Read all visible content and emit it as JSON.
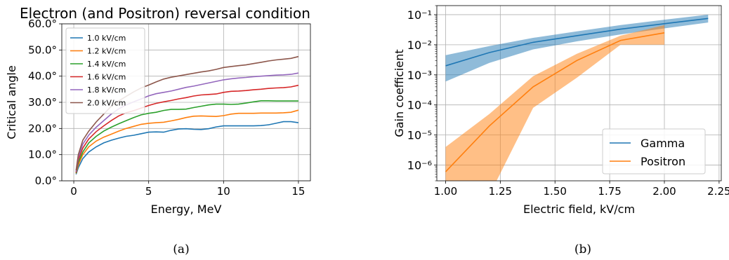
{
  "panel_labels": [
    "(a)",
    "(b)"
  ],
  "chart_data": [
    {
      "type": "line",
      "title": "Electron (and Positron) reversal condition",
      "xlabel": "Energy, MeV",
      "ylabel": "Critical angle",
      "xlim": [
        -0.8,
        15.8
      ],
      "ylim": [
        0,
        60
      ],
      "xticks": [
        0,
        5,
        10,
        15
      ],
      "xtick_labels": [
        "0",
        "5",
        "10",
        "15"
      ],
      "yticks": [
        0,
        10,
        20,
        30,
        40,
        50,
        60
      ],
      "ytick_labels": [
        "0.0°",
        "10.0°",
        "20.0°",
        "30.0°",
        "40.0°",
        "50.0°",
        "60.0°"
      ],
      "grid": true,
      "legend_position": "top-left",
      "x": [
        0.15,
        0.3,
        0.6,
        1,
        1.5,
        2,
        2.5,
        3,
        3.5,
        4,
        4.5,
        5,
        5.5,
        6,
        6.5,
        7,
        7.5,
        8,
        8.5,
        9,
        9.5,
        10,
        10.5,
        11,
        11.5,
        12,
        12.5,
        13,
        13.5,
        14,
        14.5,
        15
      ],
      "series": [
        {
          "name": "1.0 kV/cm",
          "color": "#1f77b4",
          "values": [
            2.5,
            5,
            8.5,
            11,
            13,
            14.5,
            15.5,
            16.3,
            17,
            17.4,
            18,
            18.6,
            18.7,
            18.6,
            19.3,
            19.8,
            19.9,
            19.7,
            19.6,
            19.9,
            20.6,
            21,
            21,
            21,
            21,
            21,
            21.1,
            21.4,
            22,
            22.6,
            22.6,
            22.2
          ]
        },
        {
          "name": "1.2 kV/cm",
          "color": "#ff7f0e",
          "values": [
            2.8,
            6,
            10,
            13,
            15.2,
            16.7,
            17.8,
            19,
            20,
            20.8,
            21.6,
            22,
            22.2,
            22.4,
            22.9,
            23.5,
            24.2,
            24.7,
            24.8,
            24.7,
            24.6,
            24.9,
            25.5,
            25.8,
            25.8,
            25.8,
            25.9,
            25.9,
            25.9,
            26,
            26.2,
            27
          ]
        },
        {
          "name": "1.4 kV/cm",
          "color": "#2ca02c",
          "values": [
            3,
            7,
            11,
            14.5,
            17,
            19,
            20.5,
            21.8,
            23,
            24.2,
            25.2,
            25.8,
            26.2,
            26.9,
            27.3,
            27.3,
            27.4,
            28,
            28.5,
            29,
            29.3,
            29.3,
            29.2,
            29.3,
            29.7,
            30.2,
            30.6,
            30.6,
            30.5,
            30.5,
            30.5,
            30.5
          ]
        },
        {
          "name": "1.6 kV/cm",
          "color": "#d62728",
          "values": [
            3.2,
            8,
            12.5,
            16,
            18.8,
            21,
            23,
            24.8,
            26,
            26.8,
            27.8,
            28.8,
            29.6,
            30.2,
            30.7,
            31.3,
            31.8,
            32.4,
            32.8,
            33,
            33.2,
            33.8,
            34.2,
            34.3,
            34.5,
            34.8,
            35,
            35.3,
            35.5,
            35.6,
            35.9,
            36.5
          ]
        },
        {
          "name": "1.8 kV/cm",
          "color": "#9467bd",
          "values": [
            3.5,
            9,
            14,
            17.5,
            20.5,
            23,
            25.5,
            27.5,
            29,
            30.2,
            31.3,
            32.5,
            33.3,
            33.8,
            34.3,
            35,
            35.7,
            36.2,
            36.8,
            37.4,
            38,
            38.6,
            39,
            39.3,
            39.5,
            39.8,
            40,
            40.2,
            40.4,
            40.5,
            40.7,
            41.2
          ]
        },
        {
          "name": "2.0 kV/cm",
          "color": "#8c564b",
          "values": [
            4,
            10,
            15.5,
            19,
            22.5,
            25.5,
            28.5,
            30.5,
            32.3,
            34,
            35.5,
            36.6,
            37.8,
            38.9,
            39.6,
            40.1,
            40.6,
            41.1,
            41.6,
            42,
            42.6,
            43.3,
            43.7,
            44,
            44.3,
            44.8,
            45.3,
            45.8,
            46.2,
            46.5,
            46.8,
            47.5
          ]
        }
      ]
    },
    {
      "type": "line",
      "xlabel": "Electric field, kV/cm",
      "ylabel": "Gain coefficient",
      "xlim": [
        0.96,
        2.26
      ],
      "yscale": "log",
      "ylim": [
        3e-07,
        0.2
      ],
      "xticks": [
        1.0,
        1.25,
        1.5,
        1.75,
        2.0,
        2.25
      ],
      "xtick_labels": [
        "1.00",
        "1.25",
        "1.50",
        "1.75",
        "2.00",
        "2.25"
      ],
      "yticks": [
        1e-06,
        1e-05,
        0.0001,
        0.001,
        0.01,
        0.1
      ],
      "ytick_labels": [
        "10⁻⁶",
        "10⁻⁵",
        "10⁻⁴",
        "10⁻³",
        "10⁻²",
        "10⁻¹"
      ],
      "grid": true,
      "legend_position": "bottom-right",
      "series": [
        {
          "name": "Gamma",
          "color": "#1f77b4",
          "x": [
            1.0,
            1.2,
            1.4,
            1.6,
            1.8,
            2.0,
            2.2
          ],
          "values": [
            0.002,
            0.0055,
            0.012,
            0.02,
            0.033,
            0.05,
            0.075
          ],
          "band_upper": [
            0.0045,
            0.009,
            0.017,
            0.028,
            0.045,
            0.068,
            0.1
          ],
          "band_lower": [
            0.0006,
            0.0025,
            0.007,
            0.013,
            0.022,
            0.035,
            0.055
          ]
        },
        {
          "name": "Positron",
          "color": "#ff7f0e",
          "x": [
            1.0,
            1.2,
            1.4,
            1.6,
            1.8,
            2.0
          ],
          "values": [
            6e-07,
            2e-05,
            0.0004,
            0.003,
            0.014,
            0.025
          ],
          "band_upper": [
            4e-06,
            5e-05,
            0.0009,
            0.005,
            0.02,
            0.045
          ],
          "band_lower": [
            1e-07,
            1e-07,
            8e-05,
            0.0008,
            0.01,
            0.01
          ]
        }
      ]
    }
  ]
}
